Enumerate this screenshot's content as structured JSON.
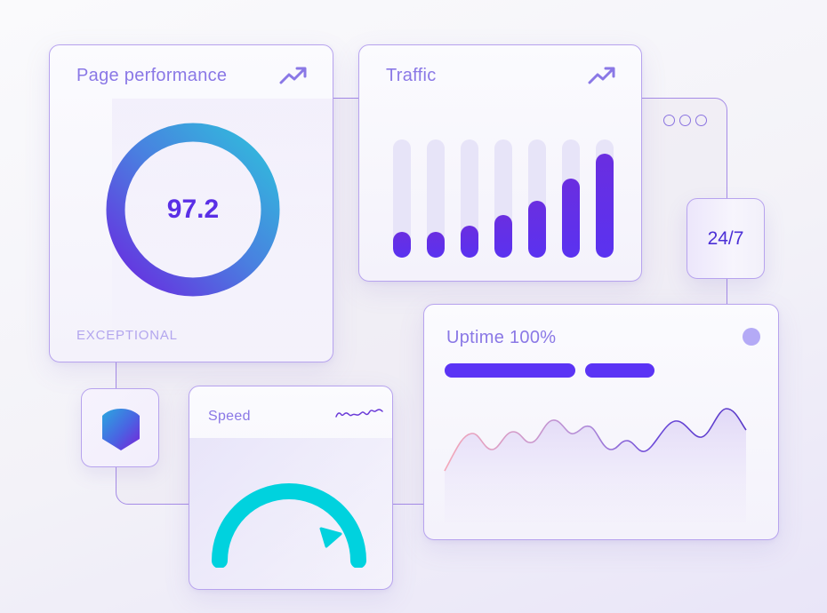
{
  "colors": {
    "accent": "#5b34f5",
    "title": "#8a78e6",
    "border": "#b7a3ee",
    "gauge": "#00d0dc",
    "ring_start": "#2fb6dc",
    "ring_end": "#6a2ee0",
    "status_dot": "#b4aaf6"
  },
  "page_performance": {
    "title": "Page performance",
    "icon": "trending-up-icon",
    "score": "97.2",
    "label": "EXCEPTIONAL"
  },
  "traffic": {
    "title": "Traffic",
    "icon": "trending-up-icon",
    "bars_percent": [
      22,
      22,
      27,
      36,
      48,
      67,
      88
    ]
  },
  "window_controls": {
    "dots": [
      "circle-icon",
      "circle-icon",
      "circle-icon"
    ]
  },
  "availability_badge": {
    "label": "24/7"
  },
  "uptime": {
    "title": "Uptime 100%",
    "status_icon": "status-dot-icon"
  },
  "security": {
    "icon": "shield-icon"
  },
  "speed": {
    "title": "Speed",
    "icon": "squiggle-line-icon"
  }
}
